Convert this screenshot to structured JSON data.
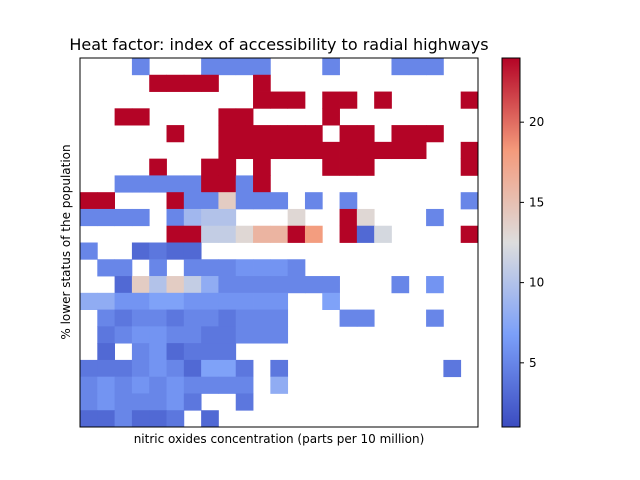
{
  "chart_data": {
    "type": "heatmap",
    "title": "Heat factor: index of accessibility to radial highways",
    "xlabel": "nitric oxides concentration (parts per 10 million)",
    "ylabel": "% lower status of the population",
    "colormap": "coolwarm",
    "colorbar": {
      "min": 1,
      "max": 24,
      "ticks": [
        5,
        10,
        15,
        20
      ]
    },
    "x_ticks_visible": false,
    "y_ticks_visible": false,
    "grid": [
      [
        null,
        null,
        null,
        5,
        null,
        null,
        null,
        5,
        5,
        5,
        5,
        null,
        null,
        null,
        5,
        null,
        null,
        null,
        5,
        5,
        5,
        null,
        null
      ],
      [
        null,
        null,
        null,
        null,
        24,
        24,
        24,
        24,
        null,
        null,
        24,
        null,
        null,
        null,
        null,
        null,
        null,
        null,
        null,
        null,
        null,
        null,
        null
      ],
      [
        null,
        null,
        null,
        null,
        null,
        null,
        null,
        null,
        null,
        null,
        24,
        24,
        24,
        null,
        24,
        24,
        null,
        24,
        null,
        null,
        null,
        null,
        24
      ],
      [
        null,
        null,
        24,
        24,
        null,
        null,
        null,
        null,
        24,
        24,
        null,
        null,
        null,
        null,
        24,
        null,
        null,
        null,
        null,
        null,
        null,
        null,
        null
      ],
      [
        null,
        null,
        null,
        null,
        null,
        24,
        null,
        null,
        24,
        24,
        24,
        24,
        24,
        24,
        null,
        24,
        24,
        null,
        24,
        24,
        24,
        null,
        null
      ],
      [
        null,
        null,
        null,
        null,
        null,
        null,
        null,
        null,
        24,
        24,
        24,
        24,
        24,
        24,
        24,
        24,
        24,
        24,
        24,
        24,
        null,
        null,
        24
      ],
      [
        null,
        null,
        null,
        null,
        24,
        null,
        null,
        24,
        24,
        null,
        24,
        null,
        null,
        null,
        24,
        24,
        24,
        null,
        null,
        null,
        null,
        null,
        24
      ],
      [
        null,
        null,
        5,
        5,
        5,
        5,
        5,
        24,
        24,
        5,
        24,
        null,
        null,
        null,
        null,
        null,
        null,
        null,
        null,
        null,
        null,
        null,
        null
      ],
      [
        24,
        24,
        null,
        null,
        null,
        24,
        5,
        5,
        14,
        5,
        5,
        5,
        null,
        5,
        null,
        5,
        null,
        null,
        null,
        null,
        null,
        null,
        5
      ],
      [
        5,
        5,
        5,
        5,
        null,
        5,
        9,
        10,
        10,
        null,
        null,
        null,
        13,
        null,
        null,
        24,
        13,
        null,
        null,
        null,
        5,
        null,
        null
      ],
      [
        null,
        null,
        null,
        null,
        null,
        24,
        24,
        11,
        11,
        13,
        16,
        16,
        24,
        18,
        null,
        24,
        3,
        12,
        null,
        null,
        null,
        null,
        24
      ],
      [
        5,
        null,
        null,
        3,
        4,
        3,
        3,
        null,
        null,
        null,
        null,
        null,
        null,
        null,
        null,
        null,
        null,
        null,
        null,
        null,
        null,
        null,
        null
      ],
      [
        null,
        5,
        5,
        null,
        5,
        null,
        5,
        5,
        5,
        6,
        6,
        6,
        5,
        null,
        null,
        null,
        null,
        null,
        null,
        null,
        null,
        null,
        null
      ],
      [
        null,
        null,
        3,
        14,
        10,
        14,
        11,
        8,
        5,
        5,
        5,
        5,
        5,
        5,
        5,
        null,
        null,
        null,
        5,
        null,
        6,
        null,
        null
      ],
      [
        8,
        8,
        6,
        6,
        7,
        7,
        6,
        6,
        6,
        6,
        6,
        6,
        null,
        null,
        7,
        null,
        null,
        null,
        null,
        null,
        null,
        null,
        null
      ],
      [
        null,
        5,
        4,
        5,
        5,
        4,
        5,
        5,
        4,
        5,
        5,
        5,
        null,
        null,
        null,
        5,
        5,
        null,
        null,
        null,
        5,
        null,
        null
      ],
      [
        null,
        4,
        5,
        6,
        6,
        5,
        5,
        4,
        4,
        5,
        5,
        5,
        null,
        null,
        null,
        null,
        null,
        null,
        null,
        null,
        null,
        null,
        null
      ],
      [
        null,
        3,
        null,
        5,
        6,
        3,
        4,
        4,
        4,
        null,
        null,
        null,
        null,
        null,
        null,
        null,
        null,
        null,
        null,
        null,
        null,
        null,
        null
      ],
      [
        4,
        4,
        4,
        5,
        6,
        5,
        3,
        7,
        7,
        4,
        null,
        4,
        null,
        null,
        null,
        null,
        null,
        null,
        null,
        null,
        null,
        4,
        null
      ],
      [
        5,
        6,
        5,
        6,
        5,
        6,
        5,
        5,
        5,
        5,
        null,
        8,
        null,
        null,
        null,
        null,
        null,
        null,
        null,
        null,
        null,
        null,
        null
      ],
      [
        5,
        6,
        5,
        5,
        5,
        6,
        4,
        null,
        null,
        4,
        null,
        null,
        null,
        null,
        null,
        null,
        null,
        null,
        null,
        null,
        null,
        null,
        null
      ],
      [
        3,
        3,
        5,
        3,
        3,
        4,
        null,
        3,
        null,
        null,
        null,
        null,
        null,
        null,
        null,
        null,
        null,
        null,
        null,
        null,
        null,
        null,
        null
      ]
    ]
  }
}
